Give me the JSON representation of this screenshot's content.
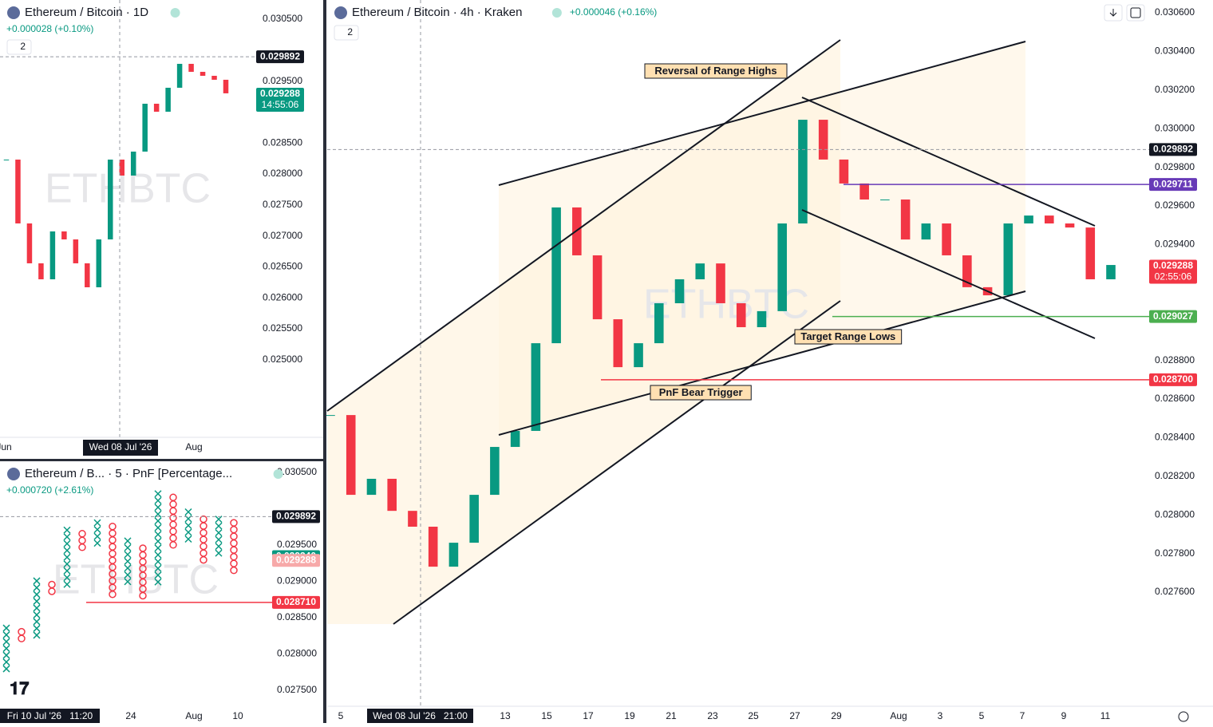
{
  "chart_data": [
    {
      "type": "candlestick",
      "title": "Ethereum / Bitcoin · 4h · Kraken",
      "change": "+0.000046 (+0.16%)",
      "indicator_count": 2,
      "watermark": "ETHBTC",
      "up_color": "#089981",
      "down_color": "#f23645",
      "values": [
        0.028517,
        0.028104,
        0.028187,
        0.028021,
        0.027939,
        0.027732,
        0.027856,
        0.028104,
        0.028352,
        0.028435,
        0.028889,
        0.029592,
        0.029344,
        0.029013,
        0.028765,
        0.028889,
        0.029096,
        0.02922,
        0.029302,
        0.029096,
        0.028972,
        0.029055,
        0.029509,
        0.030046,
        0.02984,
        0.029716,
        0.029633,
        0.029633,
        0.029426,
        0.029509,
        0.029344,
        0.029179,
        0.029137,
        0.029509,
        0.02955,
        0.029509,
        0.029488,
        0.02922,
        0.029294
      ],
      "ylim": [
        0.02703,
        0.030666
      ],
      "yticks": [
        {
          "value": 0.0306,
          "label": "0.030600"
        },
        {
          "value": 0.0304,
          "label": "0.030400"
        },
        {
          "value": 0.0302,
          "label": "0.030200"
        },
        {
          "value": 0.03,
          "label": "0.030000"
        },
        {
          "value": 0.0298,
          "label": "0.029800"
        },
        {
          "value": 0.0296,
          "label": "0.029600"
        },
        {
          "value": 0.0294,
          "label": "0.029400"
        },
        {
          "value": 0.0288,
          "label": "0.028800"
        },
        {
          "value": 0.0286,
          "label": "0.028600"
        },
        {
          "value": 0.0284,
          "label": "0.028400"
        },
        {
          "value": 0.0282,
          "label": "0.028200"
        },
        {
          "value": 0.028,
          "label": "0.028000"
        },
        {
          "value": 0.0278,
          "label": "0.027800"
        },
        {
          "value": 0.0276,
          "label": "0.027600"
        }
      ],
      "x_labels": [
        "5",
        "13",
        "15",
        "17",
        "19",
        "21",
        "23",
        "25",
        "27",
        "29",
        "Aug",
        "3",
        "5",
        "7",
        "9",
        "11"
      ],
      "crosshair_label": "Wed 08 Jul '26   21:00",
      "levels": [
        {
          "price": 0.029892,
          "color": "#131722",
          "style": "dashed"
        },
        {
          "price": 0.029711,
          "color": "#673ab7",
          "style": "solid"
        },
        {
          "price": 0.029288,
          "color": "#f23645",
          "countdown": "02:55:06"
        },
        {
          "price": 0.029027,
          "color": "#4caf50",
          "style": "solid"
        },
        {
          "price": {
            "value": 0.0287,
            "label": "0.028700"
          },
          "color": "#f23645",
          "style": "solid"
        }
      ],
      "annotations": [
        "Reversal of Range Highs",
        "Target Range Lows",
        "PnF Bear Trigger"
      ]
    },
    {
      "type": "candlestick",
      "title": "Ethereum / Bitcoin · 1D",
      "change": "+0.000028 (+0.10%)",
      "indicator_count": 2,
      "watermark": "ETHBTC",
      "up_color": "#089981",
      "down_color": "#f23645",
      "values": [
        0.028232,
        0.027201,
        0.026557,
        0.026299,
        0.027072,
        0.026943,
        0.026557,
        0.02617,
        0.026943,
        0.028232,
        0.027974,
        0.028361,
        0.029134,
        0.029005,
        0.029392,
        0.029778,
        0.029649,
        0.029585,
        0.029521,
        0.029302
      ],
      "ylim": [
        0.023786,
        0.030809
      ],
      "yticks": [
        {
          "value": 0.0305,
          "label": "0.030500"
        },
        {
          "value": 0.0295,
          "label": "0.029500"
        },
        {
          "value": 0.0285,
          "label": "0.028500"
        },
        {
          "value": 0.028,
          "label": "0.028000"
        },
        {
          "value": 0.0275,
          "label": "0.027500"
        },
        {
          "value": 0.027,
          "label": "0.027000"
        },
        {
          "value": 0.0265,
          "label": "0.026500"
        },
        {
          "value": 0.026,
          "label": "0.026000"
        },
        {
          "value": 0.0255,
          "label": "0.025500"
        },
        {
          "value": 0.025,
          "label": "0.025000"
        }
      ],
      "x_labels": [
        "Jun",
        "Aug"
      ],
      "crosshair_label": "Wed 08 Jul '26",
      "levels": [
        {
          "price": 0.029892,
          "color": "#131722",
          "style": "dashed"
        },
        {
          "price": 0.029288,
          "color": "#089981",
          "countdown": "14:55:06"
        }
      ]
    },
    {
      "type": "pnf",
      "title": "Ethereum / B... · 5 · PnF [Percentage...",
      "change": "+0.000720 (+2.61%)",
      "watermark": "ETHBTC",
      "up_color": "#089981",
      "down_color": "#f23645",
      "columns": [
        {
          "low": 0.02772,
          "high": 0.0284
        },
        {
          "low": 0.0281,
          "high": 0.02835
        },
        {
          "low": 0.02815,
          "high": 0.02905
        },
        {
          "low": 0.0288,
          "high": 0.029
        },
        {
          "low": 0.02885,
          "high": 0.02975
        },
        {
          "low": 0.0294,
          "high": 0.0297
        },
        {
          "low": 0.02945,
          "high": 0.02985
        },
        {
          "low": 0.02871,
          "high": 0.0298
        },
        {
          "low": 0.0289,
          "high": 0.0296
        },
        {
          "low": 0.02871,
          "high": 0.0295
        },
        {
          "low": 0.0289,
          "high": 0.03025
        },
        {
          "low": 0.02945,
          "high": 0.0302
        },
        {
          "low": 0.0295,
          "high": 0.03
        },
        {
          "low": 0.0292,
          "high": 0.0299
        },
        {
          "low": 0.0293,
          "high": 0.0299
        },
        {
          "low": 0.0291,
          "high": 0.02985
        }
      ],
      "ylim": [
        0.02728,
        0.030654
      ],
      "yticks": [
        {
          "value": 0.0305,
          "label": "0.030500"
        },
        {
          "value": 0.0295,
          "label": "0.029500"
        },
        {
          "value": 0.029,
          "label": "0.029000"
        },
        {
          "value": 0.0285,
          "label": "0.028500"
        },
        {
          "value": 0.028,
          "label": "0.028000"
        },
        {
          "value": 0.0275,
          "label": "0.027500"
        }
      ],
      "x_labels": [
        "24",
        "Aug",
        "10"
      ],
      "crosshair_label": "Fri 10 Jul '26   11:20",
      "levels": [
        {
          "price": 0.029892,
          "color": "#131722",
          "style": "dashed"
        },
        {
          "price": {
            "value": 0.02934,
            "label": "0.029340"
          },
          "color": "#089981"
        },
        {
          "price": 0.029288,
          "color": "#f7a9a9"
        },
        {
          "price": {
            "value": 0.02871,
            "label": "0.028710"
          },
          "color": "#f23645",
          "style": "solid"
        }
      ]
    }
  ]
}
